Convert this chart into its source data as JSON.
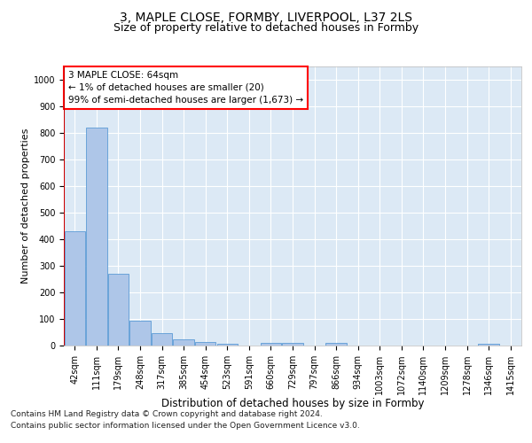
{
  "title_line1": "3, MAPLE CLOSE, FORMBY, LIVERPOOL, L37 2LS",
  "title_line2": "Size of property relative to detached houses in Formby",
  "xlabel": "Distribution of detached houses by size in Formby",
  "ylabel": "Number of detached properties",
  "categories": [
    "42sqm",
    "111sqm",
    "179sqm",
    "248sqm",
    "317sqm",
    "385sqm",
    "454sqm",
    "523sqm",
    "591sqm",
    "660sqm",
    "729sqm",
    "797sqm",
    "866sqm",
    "934sqm",
    "1003sqm",
    "1072sqm",
    "1140sqm",
    "1209sqm",
    "1278sqm",
    "1346sqm",
    "1415sqm"
  ],
  "values": [
    430,
    820,
    270,
    95,
    48,
    22,
    12,
    8,
    0,
    10,
    10,
    0,
    10,
    0,
    0,
    0,
    0,
    0,
    0,
    8,
    0
  ],
  "bar_color": "#aec6e8",
  "bar_edge_color": "#5b9bd5",
  "bg_color": "#dce9f5",
  "grid_color": "#ffffff",
  "annotation_text": "3 MAPLE CLOSE: 64sqm\n← 1% of detached houses are smaller (20)\n99% of semi-detached houses are larger (1,673) →",
  "red_line_color": "#cc0000",
  "ylim": [
    0,
    1050
  ],
  "yticks": [
    0,
    100,
    200,
    300,
    400,
    500,
    600,
    700,
    800,
    900,
    1000
  ],
  "footer_line1": "Contains HM Land Registry data © Crown copyright and database right 2024.",
  "footer_line2": "Contains public sector information licensed under the Open Government Licence v3.0.",
  "title1_fontsize": 10,
  "title2_fontsize": 9,
  "xlabel_fontsize": 8.5,
  "ylabel_fontsize": 8,
  "tick_fontsize": 7,
  "annotation_fontsize": 7.5,
  "footer_fontsize": 6.5
}
